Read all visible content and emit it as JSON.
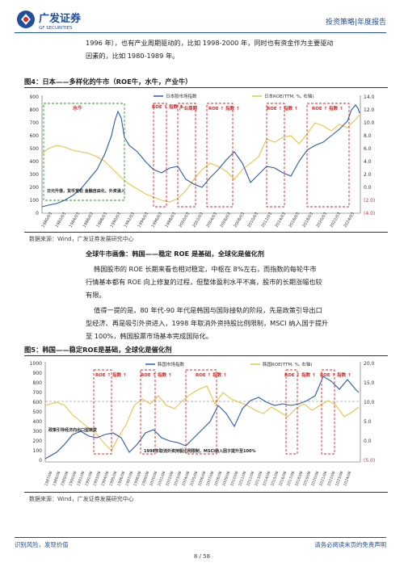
{
  "header": {
    "logo_cn": "广发证券",
    "logo_en": "GF SECURITIES",
    "category": "投资策略|年度报告"
  },
  "intro": {
    "line1": "1996 年），也有产业周期驱动的，比如 1998-2000 年，同时也有资金作为主要驱动",
    "line2": "因素的，比如 1980-1989 年。"
  },
  "figure4": {
    "title": "图4：日本——多样化的牛市（ROE牛，水牛，产业牛）",
    "source": "数据来源：Wind，广发证券发展研究中心",
    "legend_left": "日本股市场指数",
    "legend_right": "日本ROE(TTM, %, 右轴)",
    "box_labels": [
      "水牛",
      "ROE ↑ 指数 ↑",
      "产业周期",
      "ROE ↑ 指数 ↑",
      "ROE ↑ 指数 ↑",
      "ROE ↑ 指数 ↑"
    ],
    "annotation": "日元升值，货币宽松 金融自由化，外资涌入",
    "y_left_ticks": [
      "900",
      "800",
      "700",
      "600",
      "500",
      "400",
      "300",
      "200",
      "100",
      "0"
    ],
    "y_right_ticks": [
      "14.0",
      "12.0",
      "10.0",
      "8.0",
      "6.0",
      "4.0",
      "2.0",
      "0.0",
      "(2.0)",
      "(4.0)"
    ],
    "x_ticks": [
      "1980/03",
      "1982/03",
      "1984/03",
      "1986/03",
      "1988/03",
      "1990/03",
      "1992/03",
      "1994/03",
      "1996/03",
      "1998/03",
      "2000/03",
      "2002/03",
      "2004/03",
      "2006/03",
      "2008/03",
      "2010/03",
      "2012/03",
      "2014/03",
      "2016/03",
      "2018/03",
      "2020/03",
      "2022/03",
      "2024/03"
    ]
  },
  "section": {
    "subhead": "全球牛市画像：韩国——稳定 ROE 是基础，全球化是催化剂",
    "para1_l1": "韩国股市的 ROE 长期来看也相对稳定，中枢在 8%左右，而指数的每轮牛市",
    "para1_l2": "行情基本都有 ROE 向上修复的过程，但整体盈利水平不高，股市的长期涨幅也较",
    "para1_l3": "有限。",
    "para2_l1": "值得一提的是，80 年代-90 年代是韩国与国际接轨的阶段，先是政策引导出口",
    "para2_l2": "型经济、再是吸引外资进入，1998 年取消外资持股比例限制，MSCI 纳入国于提升",
    "para2_l3": "至 100%，韩国股票市场基本完成国际化。"
  },
  "figure5": {
    "title": "图5：韩国——稳定ROE是基础，全球化是催化剂",
    "source": "数据来源：Wind，广发证券发展研究中心",
    "legend_left": "韩国市场指数",
    "legend_right": "韩国ROE(TTM, %, 右轴)",
    "box_labels": [
      "ROE ↑ 指数 ↑",
      "ROE ↑ 指数 ↑",
      "ROE ↑ 指数 ↑",
      "ROE ↑ 指数 ↑",
      "ROE ↑ 指数 ↑"
    ],
    "annotation1": "政策引导经济向出口型转变",
    "annotation2": "1998年取消外资持股比例限制，MSCI纳入因子提升至100%",
    "y_left_ticks": [
      "1000",
      "900",
      "800",
      "700",
      "600",
      "500",
      "400",
      "300",
      "200",
      "100",
      "0"
    ],
    "y_right_ticks": [
      "20.0",
      "15.0",
      "10.0",
      "5.0",
      "0.0",
      "(5.0)"
    ],
    "x_ticks": [
      "1987/08",
      "1988/08",
      "1989/08",
      "1990/08",
      "1991/08",
      "1992/08",
      "1993/08",
      "1994/08",
      "1995/08",
      "1996/08",
      "1997/08",
      "1998/08",
      "1999/08",
      "2000/08",
      "2001/08",
      "2002/08",
      "2003/08",
      "2004/08",
      "2005/08",
      "2006/08",
      "2007/08",
      "2008/08",
      "2009/08",
      "2010/08",
      "2011/08",
      "2012/08",
      "2013/08",
      "2014/08",
      "2015/08",
      "2016/08",
      "2017/08",
      "2018/08",
      "2019/08",
      "2020/08",
      "2021/08",
      "2022/08",
      "2023/08",
      "2024/08"
    ]
  },
  "footer": {
    "left": "识别风险，发现价值",
    "right": "请务必阅读末页的免责声明",
    "page": "8 / 58"
  },
  "colors": {
    "index": "#2a5aa8",
    "roe": "#e8c24a",
    "box": "#d42a2a",
    "green": "#2a9a2a",
    "accent": "#1f4f9a"
  }
}
